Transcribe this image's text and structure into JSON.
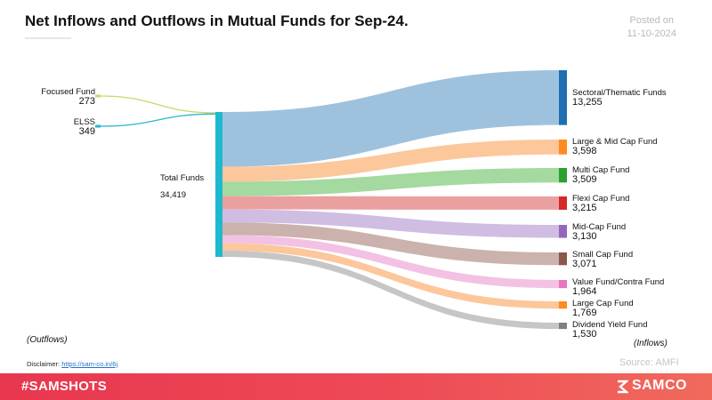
{
  "title": "Net Inflows and Outflows in Mutual Funds for Sep-24.",
  "posted": {
    "label": "Posted on",
    "date": "11-10-2024"
  },
  "outflows_label": "(Outflows)",
  "inflows_label": "(Inflows)",
  "disclaimer": {
    "label": "Disclaimer:",
    "link": "https://sam-co.in/6j"
  },
  "source": "Source: AMFI",
  "footer": {
    "hashtag": "#SAMSHOTS",
    "brand": "SAMCO"
  },
  "chart_data": {
    "type": "sankey",
    "hub": {
      "name": "Total Funds",
      "value": 34419,
      "value_label": "34,419",
      "color": "#1fb9cf"
    },
    "outflows": [
      {
        "name": "Focused Fund",
        "value": 273,
        "value_label": "273",
        "color": "#c4d96a"
      },
      {
        "name": "ELSS",
        "value": 349,
        "value_label": "349",
        "color": "#2bb6c9"
      }
    ],
    "inflows": [
      {
        "name": "Sectoral/Thematic Funds",
        "value": 13255,
        "value_label": "13,255",
        "color": "#1f6fb2",
        "flow": "#9ec2de"
      },
      {
        "name": "Large & Mid Cap Fund",
        "value": 3598,
        "value_label": "3,598",
        "color": "#ff8a1f",
        "flow": "#fcc79b"
      },
      {
        "name": "Multi Cap Fund",
        "value": 3509,
        "value_label": "3,509",
        "color": "#2ca02c",
        "flow": "#a4d9a0"
      },
      {
        "name": "Flexi Cap Fund",
        "value": 3215,
        "value_label": "3,215",
        "color": "#d62728",
        "flow": "#eba0a0"
      },
      {
        "name": "Mid-Cap Fund",
        "value": 3130,
        "value_label": "3,130",
        "color": "#9467bd",
        "flow": "#d0bde2"
      },
      {
        "name": "Small Cap Fund",
        "value": 3071,
        "value_label": "3,071",
        "color": "#8c564b",
        "flow": "#cbb2ad"
      },
      {
        "name": "Value Fund/Contra Fund",
        "value": 1964,
        "value_label": "1,964",
        "color": "#e377c2",
        "flow": "#f3c1e3"
      },
      {
        "name": "Large Cap Fund",
        "value": 1769,
        "value_label": "1,769",
        "color": "#ff8a1f",
        "flow": "#fcc79b"
      },
      {
        "name": "Dividend Yield Fund",
        "value": 1530,
        "value_label": "1,530",
        "color": "#7f7f7f",
        "flow": "#c6c6c6"
      }
    ]
  }
}
